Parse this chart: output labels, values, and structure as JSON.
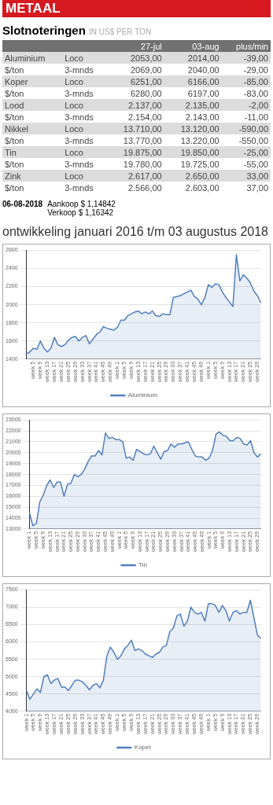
{
  "chart_data": [
    {
      "type": "other",
      "title": "METAAL",
      "subtitle": "Slotnoteringen",
      "annotations": [
        "IN US$ PER TON",
        "27-jul",
        "03-aug",
        "plus/min",
        "Aluminium",
        "Loco",
        "2053,00",
        "2014,00",
        "-39,00",
        "$/ton",
        "3-mnds",
        "2069,00",
        "2040,00",
        "-29,00",
        "Koper",
        "Loco",
        "6251,00",
        "6166,00",
        "-85,00",
        "$/ton",
        "3-mnds",
        "6280,00",
        "6197,00",
        "-83,00",
        "Lood",
        "Loco",
        "2.137,00",
        "2.135,00",
        "-2,00",
        "$/ton",
        "3-mnds",
        "2.154,00",
        "2.143,00",
        "-11,00",
        "Nikkel",
        "Loco",
        "13.710,00",
        "13.120,00",
        "-590,00",
        "$/ton",
        "3-mnds",
        "13.770,00",
        "13.220,00",
        "-550,00",
        "Tin",
        "Loco",
        "19.875,00",
        "19.850,00",
        "-25,00",
        "$/ton",
        "3-mnds",
        "19.780,00",
        "19.725,00",
        "-55,00",
        "Zink",
        "Loco",
        "2.617,00",
        "2.650,00",
        "33,00",
        "$/ton",
        "3-mnds",
        "2.566,00",
        "2.603,00",
        "37,00",
        "06-08-2018",
        "Aankoop $ 1,14842",
        "Verkoop $ 1,16342"
      ]
    },
    {
      "type": "area",
      "title": "ontwikkeling januari 2016 t/m 03 augustus 2018",
      "grid": "y",
      "legend": "bottom",
      "marker": "none",
      "ylim": [
        1400,
        2600
      ],
      "yticks": [
        1400,
        1600,
        1800,
        2000,
        2200,
        2400,
        2600
      ],
      "categories": [
        null,
        null,
        "week 5",
        null,
        "week 9",
        null,
        "week 13",
        null,
        "week 17",
        null,
        "week 21",
        null,
        "week 25",
        null,
        "week 29",
        null,
        "week 33",
        null,
        "week 37",
        null,
        "week 41",
        null,
        "week 45",
        null,
        "week 49",
        null,
        "week 1",
        null,
        "week 5",
        null,
        "week 9",
        null,
        "week 13",
        null,
        "week 17",
        null,
        "week 21",
        null,
        "week 25",
        null,
        "week 29",
        null,
        "week 33",
        null,
        "week 37",
        null,
        "week 41",
        null,
        "week 45",
        null,
        "week 49",
        null,
        "week 1",
        null,
        "week 5",
        null,
        "week 9",
        null,
        "week 13",
        null,
        "week 17",
        null,
        "week 21",
        null,
        "week 25",
        null,
        "week 29",
        null
      ],
      "series": [
        {
          "name": "Aluminium",
          "color": "#4f7fbf",
          "values": [
            1460,
            1480,
            1520,
            1510,
            1600,
            1520,
            1480,
            1520,
            1640,
            1560,
            1540,
            1560,
            1610,
            1640,
            1650,
            1600,
            1640,
            1660,
            1570,
            1620,
            1670,
            1700,
            1760,
            1740,
            1730,
            1720,
            1750,
            1830,
            1830,
            1880,
            1900,
            1920,
            1930,
            1900,
            1920,
            1900,
            1930,
            1880,
            1870,
            1900,
            1890,
            1890,
            2080,
            2090,
            2100,
            2120,
            2140,
            2160,
            2090,
            2060,
            2000,
            2080,
            2220,
            2190,
            2230,
            2220,
            2140,
            2080,
            2030,
            1980,
            2550,
            2260,
            2330,
            2290,
            2240,
            2150,
            2100,
            2020
          ]
        }
      ]
    },
    {
      "type": "area",
      "grid": "y",
      "legend": "bottom",
      "marker": "none",
      "ylim": [
        13000,
        23000
      ],
      "yticks": [
        13000,
        14000,
        15000,
        16000,
        17000,
        18000,
        19000,
        20000,
        21000,
        22000,
        23000
      ],
      "categories": [
        "week 1",
        null,
        "week 5",
        null,
        "week 9",
        null,
        "week 13",
        null,
        "week 17",
        null,
        "week 21",
        null,
        "week 25",
        null,
        "week 29",
        null,
        "week 33",
        null,
        "week 37",
        null,
        "week 41",
        null,
        "week 45",
        null,
        "week 49",
        null,
        "week 1",
        null,
        "week 5",
        null,
        "week 9",
        null,
        "week 13",
        null,
        "week 17",
        null,
        "week 21",
        null,
        "week 25",
        null,
        "week 29",
        null,
        "week 33",
        null,
        "week 37",
        null,
        "week 41",
        null,
        "week 45",
        null,
        "week 49",
        null,
        "week 1",
        null,
        "week 5",
        null,
        "week 9",
        null,
        "week 13",
        null,
        "week 17",
        null,
        "week 21",
        null,
        "week 25",
        null,
        "week 29",
        null
      ],
      "series": [
        {
          "name": "Tin",
          "color": "#4f7fbf",
          "values": [
            14500,
            13300,
            13500,
            15500,
            16100,
            17000,
            17500,
            16800,
            17300,
            17300,
            16000,
            17100,
            17200,
            18000,
            17800,
            18000,
            18500,
            19200,
            19700,
            19700,
            20200,
            19800,
            21800,
            21300,
            21400,
            21200,
            21200,
            21000,
            19500,
            19600,
            19300,
            20300,
            20100,
            19900,
            19800,
            19900,
            20600,
            20000,
            19400,
            20100,
            20200,
            20800,
            20500,
            20800,
            20800,
            20900,
            21000,
            20300,
            19700,
            19600,
            19600,
            19300,
            19500,
            20200,
            21700,
            21900,
            21600,
            21500,
            21100,
            21100,
            21400,
            21300,
            20800,
            20700,
            21100,
            20000,
            19600,
            19900
          ]
        }
      ]
    },
    {
      "type": "area",
      "grid": "y",
      "legend": "bottom",
      "marker": "none",
      "ylim": [
        4000,
        7500
      ],
      "yticks": [
        4000,
        4500,
        5000,
        5500,
        6000,
        6500,
        7000,
        7500
      ],
      "categories": [
        "week 1",
        null,
        "week 5",
        null,
        "week 9",
        null,
        "week 13",
        null,
        "week 17",
        null,
        "week 21",
        null,
        "week 25",
        null,
        "week 29",
        null,
        "week 33",
        null,
        "week 37",
        null,
        "week 41",
        null,
        "week 45",
        null,
        "week 49",
        null,
        "week 1",
        null,
        "week 5",
        null,
        "week 9",
        null,
        "week 13",
        null,
        "week 17",
        null,
        "week 21",
        null,
        "week 25",
        null,
        "week 29",
        null,
        "week 33",
        null,
        "week 37",
        null,
        "week 41",
        null,
        "week 45",
        null,
        "week 49",
        null,
        "week 1",
        null,
        "week 5",
        null,
        "week 9",
        null,
        "week 13",
        null,
        "week 17",
        null,
        "week 21",
        null,
        "week 25",
        null,
        "week 29",
        null
      ],
      "series": [
        {
          "name": "Koper",
          "color": "#4f7fbf",
          "values": [
            4600,
            4350,
            4500,
            4650,
            4550,
            5000,
            5050,
            4800,
            4900,
            4950,
            4700,
            4700,
            4600,
            4750,
            4900,
            4900,
            4850,
            4750,
            4620,
            4750,
            4800,
            4680,
            4900,
            5600,
            5850,
            5700,
            5500,
            5600,
            5800,
            5900,
            6050,
            5750,
            5800,
            5750,
            5650,
            5600,
            5550,
            5650,
            5700,
            5850,
            5900,
            6300,
            6400,
            6750,
            6800,
            6450,
            6600,
            7000,
            6850,
            6800,
            6850,
            6600,
            7100,
            7100,
            7050,
            6850,
            7050,
            6900,
            6600,
            6850,
            6900,
            6800,
            6850,
            6850,
            7200,
            6700,
            6200,
            6100
          ]
        }
      ]
    }
  ]
}
